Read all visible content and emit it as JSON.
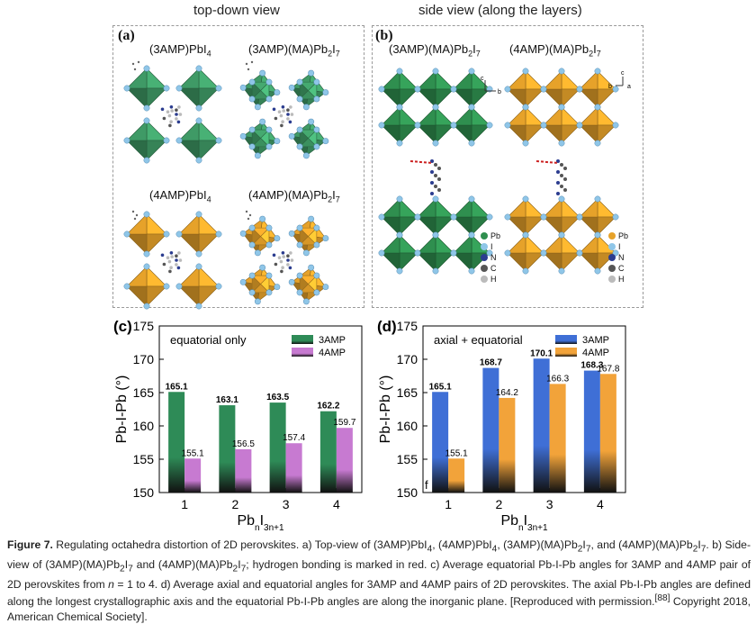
{
  "headers": {
    "top_down": "top-down view",
    "side_view": "side view (along the layers)"
  },
  "panel_a": {
    "label": "(a)",
    "structures": [
      {
        "name_html": "(3AMP)PbI<sub>4</sub>",
        "color": "#3f9a66"
      },
      {
        "name_html": "(3AMP)(MA)Pb<sub>2</sub>I<sub>7</sub>",
        "color": "#3f9a66"
      },
      {
        "name_html": "(4AMP)PbI<sub>4</sub>",
        "color": "#e6a22a"
      },
      {
        "name_html": "(4AMP)(MA)Pb<sub>2</sub>I<sub>7</sub>",
        "color": "#e6a22a"
      }
    ]
  },
  "panel_b": {
    "label": "(b)",
    "titles_html": [
      "(3AMP)(MA)Pb<sub>2</sub>I<sub>7</sub>",
      "(4AMP)(MA)Pb<sub>2</sub>I<sub>7</sub>"
    ],
    "axes_left": {
      "c": "c",
      "b": "b"
    },
    "axes_right": {
      "c": "c",
      "b": "b",
      "a": "a"
    },
    "legend_green": [
      "Pb",
      "I",
      "N",
      "C",
      "H"
    ],
    "legend_orange": [
      "Pb",
      "I",
      "N",
      "C",
      "H"
    ],
    "colors": {
      "pb_green": "#2f8f4f",
      "pb_orange": "#e6a22a",
      "iodide": "#8fc6e8",
      "nitrogen": "#2b3c8f",
      "carbon": "#555555",
      "hydrogen": "#bbbbbb",
      "hbond": "#cc2222"
    }
  },
  "chart_data": [
    {
      "type": "bar",
      "panel_label": "(c)",
      "annotation": "equatorial only",
      "categories": [
        "1",
        "2",
        "3",
        "4"
      ],
      "series": [
        {
          "name": "3AMP",
          "values": [
            165.1,
            163.1,
            163.5,
            162.2
          ],
          "color": "#2e8b57"
        },
        {
          "name": "4AMP",
          "values": [
            155.1,
            156.5,
            157.4,
            159.7
          ],
          "color": "#c77ad1"
        }
      ],
      "value_labels": [
        [
          "165.1",
          "163.1",
          "163.5",
          "162.2"
        ],
        [
          "155.1",
          "156.5",
          "157.4",
          "159.7"
        ]
      ],
      "ylabel": "Pb-I-Pb (°)",
      "xlabel_html": "Pb<tspan baseline-shift='sub' font-size='10'>n</tspan>I<tspan baseline-shift='sub' font-size='10'>3n+1</tspan>",
      "ylim": [
        150,
        175
      ],
      "yticks": [
        "150",
        "155",
        "160",
        "165",
        "170",
        "175"
      ],
      "legend": "top-right"
    },
    {
      "type": "bar",
      "panel_label": "(d)",
      "annotation": "axial + equatorial",
      "stray_text": "f",
      "categories": [
        "1",
        "2",
        "3",
        "4"
      ],
      "series": [
        {
          "name": "3AMP",
          "values": [
            165.1,
            168.7,
            170.1,
            168.3
          ],
          "color": "#3f6fd6"
        },
        {
          "name": "4AMP",
          "values": [
            155.1,
            164.2,
            166.3,
            167.8
          ],
          "color": "#f2a33a"
        }
      ],
      "value_labels": [
        [
          "165.1",
          "168.7",
          "170.1",
          "168.3"
        ],
        [
          "155.1",
          "164.2",
          "166.3",
          "167.8"
        ]
      ],
      "ylabel": "Pb-I-Pb (°)",
      "xlabel_html": "Pb<tspan baseline-shift='sub' font-size='10'>n</tspan>I<tspan baseline-shift='sub' font-size='10'>3n+1</tspan>",
      "ylim": [
        150,
        175
      ],
      "yticks": [
        "150",
        "155",
        "160",
        "165",
        "170",
        "175"
      ],
      "legend": "top-right"
    }
  ],
  "caption_html": "<b>Figure 7.</b> Regulating octahedra distortion of 2D perovskites. a) Top-view of (3AMP)PbI<sub>4</sub>, (4AMP)PbI<sub>4</sub>, (3AMP)(MA)Pb<sub>2</sub>I<sub>7</sub>, and (4AMP)(MA)Pb<sub>2</sub>I<sub>7</sub>. b) Side-view of (3AMP)(MA)Pb<sub>2</sub>I<sub>7</sub> and (4AMP)(MA)Pb<sub>2</sub>I<sub>7</sub>; hydrogen bonding is marked in red. c) Average equatorial Pb-I-Pb angles for 3AMP and 4AMP pair of 2D perovskites from <i>n</i> = 1 to 4. d) Average axial and equatorial angles for 3AMP and 4AMP pairs of 2D perovskites. The axial Pb-I-Pb angles are defined along the longest crystallographic axis and the equatorial Pb-I-Pb angles are along the inorganic plane. [Reproduced with permission.<sup>[88]</sup> Copyright 2018, American Chemical Society]."
}
